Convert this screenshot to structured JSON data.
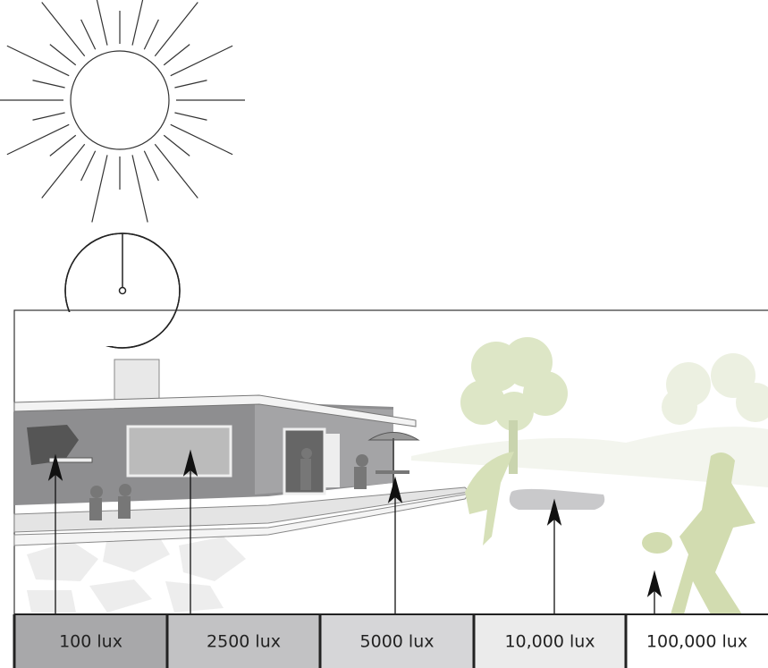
{
  "labels": [
    "100 lux",
    "2500 lux",
    "5000 lux",
    "10,000 lux",
    "100,000 lux"
  ]
}
